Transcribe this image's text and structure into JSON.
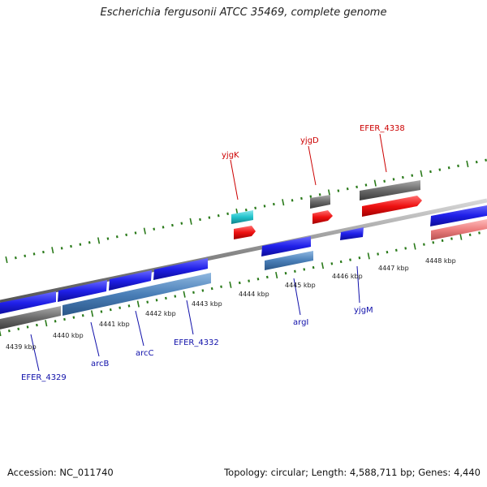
{
  "title": "Escherichia fergusonii ATCC 35469, complete genome",
  "footer": {
    "accession": "Accession: NC_011740",
    "summary": "Topology: circular; Length: 4,588,711 bp; Genes: 4,440"
  },
  "scale_labels": [
    "4439 kbp",
    "4440 kbp",
    "4441 kbp",
    "4442 kbp",
    "4443 kbp",
    "4444 kbp",
    "4445 kbp",
    "4446 kbp",
    "4447 kbp",
    "4448 kbp"
  ],
  "gene_labels": {
    "forward": [
      "yjgK",
      "yjgD",
      "EFER_4338"
    ],
    "reverse": [
      "EFER_4329",
      "arcB",
      "arcC",
      "EFER_4332",
      "argI",
      "yjgM"
    ]
  },
  "colors": {
    "forward_label": "#cc0000",
    "reverse_label": "#1010aa",
    "tick": "#2a7a1a",
    "backbone": "#808080",
    "cds_forward_blue": "#1f1fe8",
    "cds_forward_red": "#ee1111",
    "cds_cyan": "#22c4cc",
    "gene_gray": "#6a6a6a",
    "gene_steelblue": "#4a7fb8",
    "gene_pink": "#ee8080"
  }
}
